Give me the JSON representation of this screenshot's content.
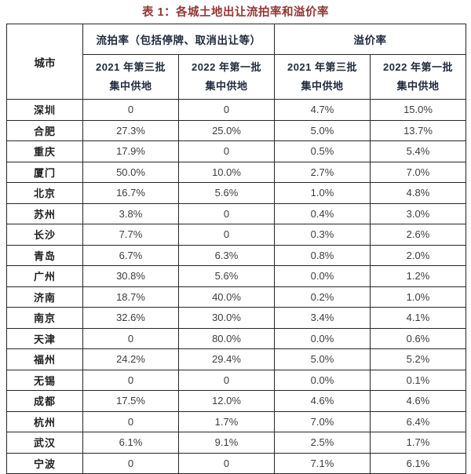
{
  "title": "表 1：各城土地出让流拍率和溢价率",
  "table": {
    "corner_header": "城市",
    "group_headers": [
      {
        "label": "流拍率（包括停牌、取消出让等）"
      },
      {
        "label": "溢价率"
      }
    ],
    "sub_headers": [
      {
        "line1": "2021 年第三批",
        "line2": "集中供地"
      },
      {
        "line1": "2022 年第一批",
        "line2": "集中供地"
      },
      {
        "line1": "2021 年第三批",
        "line2": "集中供地"
      },
      {
        "line1": "2022 年第一批",
        "line2": "集中供地"
      }
    ],
    "rows": [
      {
        "city": "深圳",
        "values": [
          "0",
          "0",
          "4.7%",
          "15.0%"
        ]
      },
      {
        "city": "合肥",
        "values": [
          "27.3%",
          "25.0%",
          "5.0%",
          "13.7%"
        ]
      },
      {
        "city": "重庆",
        "values": [
          "17.9%",
          "0",
          "0.5%",
          "5.4%"
        ]
      },
      {
        "city": "厦门",
        "values": [
          "50.0%",
          "10.0%",
          "2.7%",
          "7.0%"
        ]
      },
      {
        "city": "北京",
        "values": [
          "16.7%",
          "5.6%",
          "1.0%",
          "4.8%"
        ]
      },
      {
        "city": "苏州",
        "values": [
          "3.8%",
          "0",
          "0.4%",
          "3.0%"
        ]
      },
      {
        "city": "长沙",
        "values": [
          "7.7%",
          "0",
          "0.3%",
          "2.6%"
        ]
      },
      {
        "city": "青岛",
        "values": [
          "6.7%",
          "6.3%",
          "0.8%",
          "2.0%"
        ]
      },
      {
        "city": "广州",
        "values": [
          "30.8%",
          "5.6%",
          "0.0%",
          "1.2%"
        ]
      },
      {
        "city": "济南",
        "values": [
          "18.7%",
          "40.0%",
          "0.2%",
          "1.0%"
        ]
      },
      {
        "city": "南京",
        "values": [
          "32.6%",
          "30.0%",
          "3.4%",
          "4.1%"
        ]
      },
      {
        "city": "天津",
        "values": [
          "0",
          "80.0%",
          "0.0%",
          "0.6%"
        ]
      },
      {
        "city": "福州",
        "values": [
          "24.2%",
          "29.4%",
          "5.0%",
          "5.2%"
        ]
      },
      {
        "city": "无锡",
        "values": [
          "0",
          "0",
          "0.0%",
          "0.1%"
        ]
      },
      {
        "city": "成都",
        "values": [
          "17.5%",
          "12.0%",
          "4.6%",
          "4.6%"
        ]
      },
      {
        "city": "杭州",
        "values": [
          "0",
          "1.7%",
          "7.0%",
          "6.4%"
        ]
      },
      {
        "city": "武汉",
        "values": [
          "6.1%",
          "9.1%",
          "2.5%",
          "1.7%"
        ]
      },
      {
        "city": "宁波",
        "values": [
          "0",
          "0",
          "7.1%",
          "6.1%"
        ]
      }
    ]
  },
  "colors": {
    "title_color": "#943634",
    "header_text": "#1f2a3d",
    "city_text": "#1f1f1f",
    "value_text": "#3d3d3d",
    "border_color": "#262626",
    "bg": "#ffffff"
  }
}
